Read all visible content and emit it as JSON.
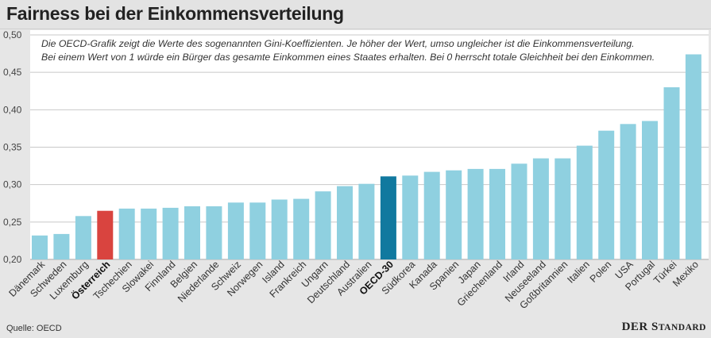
{
  "header": {
    "title": "Fairness bei der Einkommensverteilung"
  },
  "note": {
    "line1": "Die OECD-Grafik zeigt die Werte des sogenannten Gini-Koeffizienten. Je höher der Wert, umso ungleicher ist die Einkommensverteilung.",
    "line2": "Bei einem Wert von 1 würde ein Bürger das gesamte Einkommen eines Staates erhalten. Bei 0 herrscht totale Gleichheit bei den Einkommen."
  },
  "footer": {
    "source": "Quelle: OECD",
    "brand_der": "DER",
    "brand_s": "S",
    "brand_rest": "TANDARD"
  },
  "chart_data": {
    "type": "bar",
    "title": "Fairness bei der Einkommensverteilung",
    "xlabel": "",
    "ylabel": "",
    "ylim": [
      0.2,
      0.5
    ],
    "yticks": [
      "0,20",
      "0,25",
      "0,30",
      "0,35",
      "0,40",
      "0,45",
      "0,50"
    ],
    "grid": true,
    "categories": [
      "Dänemark",
      "Schweden",
      "Luxemburg",
      "Österreich",
      "Tschechien",
      "Slowakei",
      "Finnland",
      "Belgien",
      "Niederlande",
      "Schweiz",
      "Norwegen",
      "Island",
      "Frankreich",
      "Ungarn",
      "Deutschland",
      "Australien",
      "OECD-30",
      "Südkorea",
      "Kanada",
      "Spanien",
      "Japan",
      "Griechenland",
      "Irland",
      "Neuseeland",
      "Goßbritannien",
      "Italien",
      "Polen",
      "USA",
      "Portugal",
      "Türkei",
      "Mexiko"
    ],
    "values": [
      0.232,
      0.234,
      0.258,
      0.265,
      0.268,
      0.268,
      0.269,
      0.271,
      0.271,
      0.276,
      0.276,
      0.28,
      0.281,
      0.291,
      0.298,
      0.301,
      0.311,
      0.312,
      0.317,
      0.319,
      0.321,
      0.321,
      0.328,
      0.335,
      0.335,
      0.352,
      0.372,
      0.381,
      0.385,
      0.43,
      0.474
    ],
    "highlight": {
      "Österreich": "#d9443f",
      "OECD-30": "#11799f"
    },
    "bold_labels": [
      "Österreich",
      "OECD-30"
    ],
    "bar_color": "#8fd0e0"
  }
}
